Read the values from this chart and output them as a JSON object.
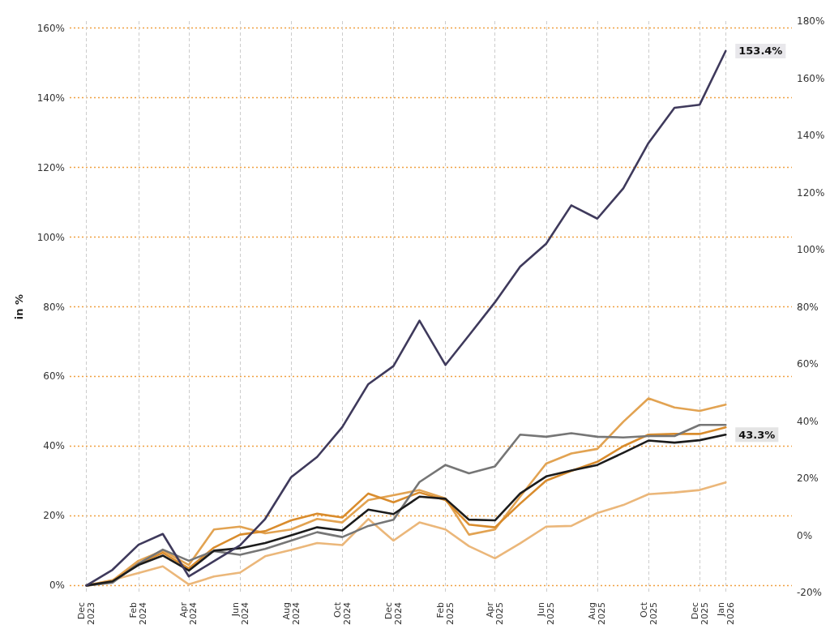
{
  "chart_data": {
    "type": "line",
    "ylabel": "in %",
    "x": [
      "2023-12",
      "2024-01",
      "2024-02",
      "2024-03",
      "2024-04",
      "2024-05",
      "2024-06",
      "2024-07",
      "2024-08",
      "2024-09",
      "2024-10",
      "2024-11",
      "2024-12",
      "2025-01",
      "2025-02",
      "2025-03",
      "2025-04",
      "2025-05",
      "2025-06",
      "2025-07",
      "2025-08",
      "2025-09",
      "2025-10",
      "2025-11",
      "2025-12",
      "2026-01"
    ],
    "xlim": [
      "2023-11-11",
      "2026-03-21"
    ],
    "xticks": [
      {
        "value": "2023-12",
        "label": "Dec 2023"
      },
      {
        "value": "2024-02",
        "label": "Feb 2024"
      },
      {
        "value": "2024-04",
        "label": "Apr 2024"
      },
      {
        "value": "2024-06",
        "label": "Jun 2024"
      },
      {
        "value": "2024-08",
        "label": "Aug 2024"
      },
      {
        "value": "2024-10",
        "label": "Oct 2024"
      },
      {
        "value": "2024-12",
        "label": "Dec 2024"
      },
      {
        "value": "2025-02",
        "label": "Feb 2025"
      },
      {
        "value": "2025-04",
        "label": "Apr 2025"
      },
      {
        "value": "2025-06",
        "label": "Jun 2025"
      },
      {
        "value": "2025-08",
        "label": "Aug 2025"
      },
      {
        "value": "2025-10",
        "label": "Oct 2025"
      },
      {
        "value": "2025-12",
        "label": "Dec 2025"
      },
      {
        "value": "2026-01",
        "label": "Jan 2026"
      }
    ],
    "ylim": [
      -2,
      162
    ],
    "yticks": [
      {
        "value": 0,
        "label": "0%"
      },
      {
        "value": 20,
        "label": "20%"
      },
      {
        "value": 40,
        "label": "40%"
      },
      {
        "value": 60,
        "label": "60%"
      },
      {
        "value": 80,
        "label": "80%"
      },
      {
        "value": 100,
        "label": "100%"
      },
      {
        "value": 120,
        "label": "120%"
      },
      {
        "value": 140,
        "label": "140%"
      },
      {
        "value": 160,
        "label": "160%"
      }
    ],
    "y2lim": [
      -20,
      180
    ],
    "y2ticks": [
      {
        "value": -20,
        "label": "-20%"
      },
      {
        "value": 0,
        "label": "0%"
      },
      {
        "value": 20,
        "label": "20%"
      },
      {
        "value": 40,
        "label": "40%"
      },
      {
        "value": 60,
        "label": "60%"
      },
      {
        "value": 80,
        "label": "80%"
      },
      {
        "value": 100,
        "label": "100%"
      },
      {
        "value": 120,
        "label": "120%"
      },
      {
        "value": 140,
        "label": "140%"
      },
      {
        "value": 160,
        "label": "160%"
      },
      {
        "value": 180,
        "label": "180%"
      }
    ],
    "grid": true,
    "series": [
      {
        "color": "#ebb77a",
        "values": [
          0,
          1.6,
          3.6,
          5.5,
          0.3,
          2.6,
          3.7,
          8.4,
          10.2,
          12.2,
          11.6,
          19.1,
          12.9,
          18.1,
          16.1,
          11.3,
          7.8,
          12.1,
          16.9,
          17.1,
          20.8,
          23.1,
          26.2,
          26.7,
          27.4,
          29.6
        ]
      },
      {
        "color": "#e2a352",
        "values": [
          0,
          1.4,
          7.1,
          10.0,
          5.9,
          16.1,
          16.9,
          15.0,
          16.1,
          19.1,
          18.1,
          24.5,
          25.9,
          27.4,
          25.0,
          14.6,
          16.1,
          25.5,
          35.0,
          37.9,
          39.2,
          47.0,
          53.7,
          51.1,
          50.1,
          51.9
        ]
      },
      {
        "color": "#d98c2d",
        "values": [
          0,
          1.2,
          6.3,
          9.4,
          4.9,
          10.9,
          14.6,
          15.6,
          18.7,
          20.6,
          19.5,
          26.4,
          23.9,
          26.7,
          24.5,
          17.5,
          16.7,
          23.5,
          30.1,
          32.9,
          35.5,
          40.0,
          43.3,
          43.5,
          43.5,
          45.4
        ]
      },
      {
        "color": "#767676",
        "values": [
          0,
          0.8,
          6.3,
          10.3,
          7.1,
          9.9,
          8.8,
          10.5,
          12.9,
          15.3,
          13.9,
          17.1,
          18.9,
          29.7,
          34.6,
          32.2,
          34.2,
          43.3,
          42.7,
          43.7,
          42.7,
          42.5,
          42.9,
          42.9,
          46.1,
          46.1
        ]
      },
      {
        "color": "#1c1c1c",
        "values": [
          0,
          1.2,
          5.9,
          8.6,
          4.3,
          10.0,
          10.7,
          12.2,
          14.4,
          16.7,
          15.8,
          21.8,
          20.5,
          25.5,
          24.9,
          18.9,
          18.7,
          26.4,
          31.3,
          33.0,
          34.6,
          38.1,
          41.6,
          41.0,
          41.7,
          43.3
        ],
        "value_labels": [
          null,
          null,
          null,
          null,
          null,
          null,
          null,
          null,
          null,
          null,
          null,
          null,
          null,
          null,
          null,
          null,
          null,
          null,
          null,
          null,
          null,
          null,
          null,
          null,
          null,
          "43.3%"
        ]
      },
      {
        "color": "#3f3a5c",
        "values": [
          0,
          4.5,
          11.7,
          14.8,
          2.6,
          7.0,
          11.5,
          19.1,
          31.1,
          36.9,
          45.5,
          57.8,
          63.0,
          76.0,
          63.3,
          71.8,
          81.3,
          91.5,
          98.1,
          109.1,
          105.3,
          114.0,
          127.0,
          137.1,
          138.0,
          153.4
        ],
        "value_labels": [
          null,
          null,
          null,
          null,
          null,
          null,
          null,
          null,
          null,
          null,
          null,
          null,
          null,
          null,
          null,
          null,
          null,
          null,
          null,
          null,
          null,
          null,
          null,
          null,
          null,
          "153.4%"
        ]
      }
    ]
  }
}
